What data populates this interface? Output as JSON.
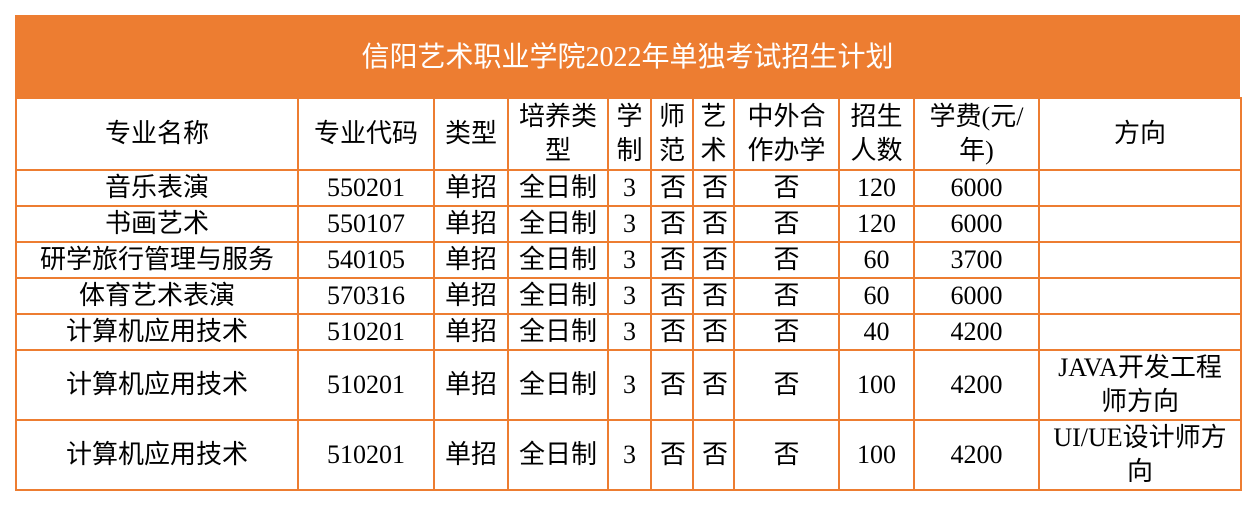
{
  "title": "信阳艺术职业学院2022年单独考试招生计划",
  "table": {
    "header": [
      "专业名称",
      "专业代码",
      "类型",
      "培养类型",
      "学制",
      "师范",
      "艺术",
      "中外合作办学",
      "招生人数",
      "学费(元/年)",
      "方向"
    ],
    "rows": [
      [
        "音乐表演",
        "550201",
        "单招",
        "全日制",
        "3",
        "否",
        "否",
        "否",
        "120",
        "6000",
        null
      ],
      [
        "书画艺术",
        "550107",
        "单招",
        "全日制",
        "3",
        "否",
        "否",
        "否",
        "120",
        "6000",
        null
      ],
      [
        "研学旅行管理与服务",
        "540105",
        "单招",
        "全日制",
        "3",
        "否",
        "否",
        "否",
        "60",
        "3700",
        null
      ],
      [
        "体育艺术表演",
        "570316",
        "单招",
        "全日制",
        "3",
        "否",
        "否",
        "否",
        "60",
        "6000",
        null
      ],
      [
        "计算机应用技术",
        "510201",
        "单招",
        "全日制",
        "3",
        "否",
        "否",
        "否",
        "40",
        "4200",
        null
      ],
      [
        "计算机应用技术",
        "510201",
        "单招",
        "全日制",
        "3",
        "否",
        "否",
        "否",
        "100",
        "4200",
        "JAVA开发工程师方向"
      ],
      [
        "计算机应用技术",
        "510201",
        "单招",
        "全日制",
        "3",
        "否",
        "否",
        "否",
        "100",
        "4200",
        "UI/UE设计师方向"
      ]
    ]
  }
}
